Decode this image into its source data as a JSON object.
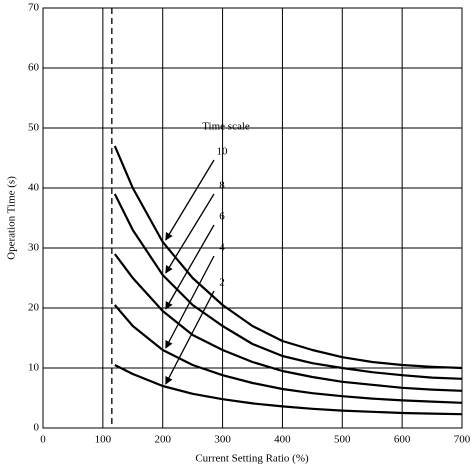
{
  "chart_data": {
    "type": "line",
    "x_label": "Current Setting Ratio (%)",
    "y_label": "Operation Time (s)",
    "annotation": "Time scale",
    "x": [
      120,
      150,
      200,
      250,
      300,
      350,
      400,
      450,
      500,
      550,
      600,
      650,
      700
    ],
    "series": [
      {
        "name": "10",
        "color": "#000000",
        "values": [
          47,
          40,
          31,
          25,
          20.5,
          17,
          14.5,
          13,
          11.8,
          11,
          10.5,
          10.2,
          10
        ]
      },
      {
        "name": "8",
        "color": "#000000",
        "values": [
          39,
          33,
          25.5,
          20.5,
          17,
          14,
          12,
          10.8,
          10,
          9.3,
          8.8,
          8.4,
          8.2
        ]
      },
      {
        "name": "6",
        "color": "#000000",
        "values": [
          29,
          25,
          19.5,
          15.5,
          13,
          11,
          9.5,
          8.5,
          7.7,
          7.2,
          6.7,
          6.4,
          6.2
        ]
      },
      {
        "name": "4",
        "color": "#000000",
        "values": [
          20.5,
          17,
          13,
          10.5,
          8.8,
          7.5,
          6.5,
          5.8,
          5.3,
          4.9,
          4.6,
          4.4,
          4.2
        ]
      },
      {
        "name": "2",
        "color": "#000000",
        "values": [
          10.5,
          9,
          7,
          5.7,
          4.8,
          4.1,
          3.6,
          3.2,
          2.9,
          2.7,
          2.5,
          2.4,
          2.3
        ]
      }
    ],
    "reference_x": 115,
    "xlim": [
      0,
      700
    ],
    "xticks": [
      0,
      100,
      200,
      300,
      400,
      500,
      600,
      700
    ],
    "ylim": [
      0,
      70
    ],
    "yticks": [
      0,
      10,
      20,
      30,
      40,
      50,
      60,
      70
    ],
    "grid": true
  }
}
